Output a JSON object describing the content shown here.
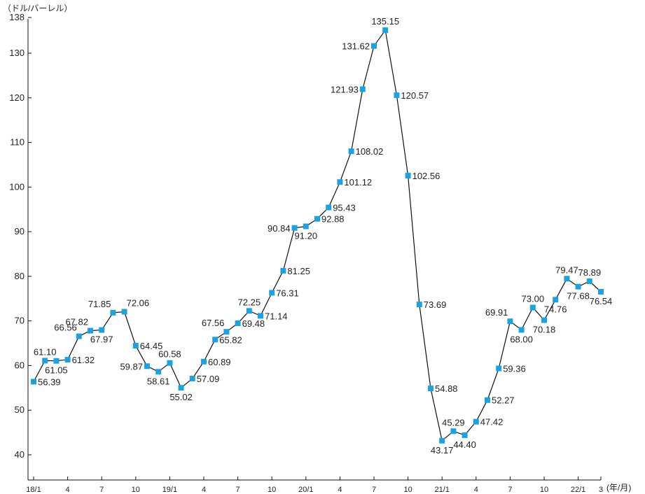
{
  "chart_data": {
    "type": "line",
    "title": "",
    "ylabel": "（ドル/バーレル）",
    "xlabel": "(年/月)",
    "ylim": [
      35,
      138
    ],
    "yticks": [
      40,
      50,
      60,
      70,
      80,
      90,
      100,
      110,
      120,
      130,
      138
    ],
    "line_color": "#111111",
    "marker_color": "#1aa3e0",
    "xtick_labels": [
      {
        "index": 0,
        "label": "18/1"
      },
      {
        "index": 3,
        "label": "4"
      },
      {
        "index": 6,
        "label": "7"
      },
      {
        "index": 9,
        "label": "10"
      },
      {
        "index": 12,
        "label": "19/1"
      },
      {
        "index": 15,
        "label": "4"
      },
      {
        "index": 18,
        "label": "7"
      },
      {
        "index": 21,
        "label": "10"
      },
      {
        "index": 24,
        "label": "20/1"
      },
      {
        "index": 27,
        "label": "4"
      },
      {
        "index": 30,
        "label": "7"
      },
      {
        "index": 33,
        "label": "10"
      },
      {
        "index": 36,
        "label": "21/1"
      },
      {
        "index": 39,
        "label": "4"
      },
      {
        "index": 42,
        "label": "7"
      },
      {
        "index": 45,
        "label": "10"
      },
      {
        "index": 48,
        "label": "22/1"
      },
      {
        "index": 50,
        "label": "3"
      }
    ],
    "values": [
      56.39,
      61.1,
      61.05,
      61.32,
      66.56,
      67.82,
      67.97,
      71.85,
      72.06,
      64.45,
      59.87,
      58.61,
      60.58,
      55.02,
      57.09,
      60.89,
      65.82,
      67.56,
      69.48,
      72.25,
      71.14,
      76.31,
      81.25,
      90.84,
      91.2,
      92.88,
      95.43,
      101.12,
      108.02,
      121.93,
      131.62,
      135.15,
      120.57,
      102.56,
      73.69,
      54.88,
      43.17,
      45.29,
      44.4,
      47.42,
      52.27,
      59.36,
      69.91,
      68.0,
      73.0,
      70.18,
      74.76,
      79.47,
      77.68,
      78.89,
      76.54
    ],
    "value_labels": [
      "56.39",
      "61.10",
      "61.05",
      "61.32",
      "66.56",
      "67.82",
      "67.97",
      "71.85",
      "72.06",
      "64.45",
      "59.87",
      "58.61",
      "60.58",
      "55.02",
      "57.09",
      "60.89",
      "65.82",
      "67.56",
      "69.48",
      "72.25",
      "71.14",
      "76.31",
      "81.25",
      "90.84",
      "91.20",
      "92.88",
      "95.43",
      "101.12",
      "108.02",
      "121.93",
      "131.62",
      "135.15",
      "120.57",
      "102.56",
      "73.69",
      "54.88",
      "43.17",
      "45.29",
      "44.40",
      "47.42",
      "52.27",
      "59.36",
      "69.91",
      "68.00",
      "73.00",
      "70.18",
      "74.76",
      "79.47",
      "77.68",
      "78.89",
      "76.54"
    ]
  }
}
